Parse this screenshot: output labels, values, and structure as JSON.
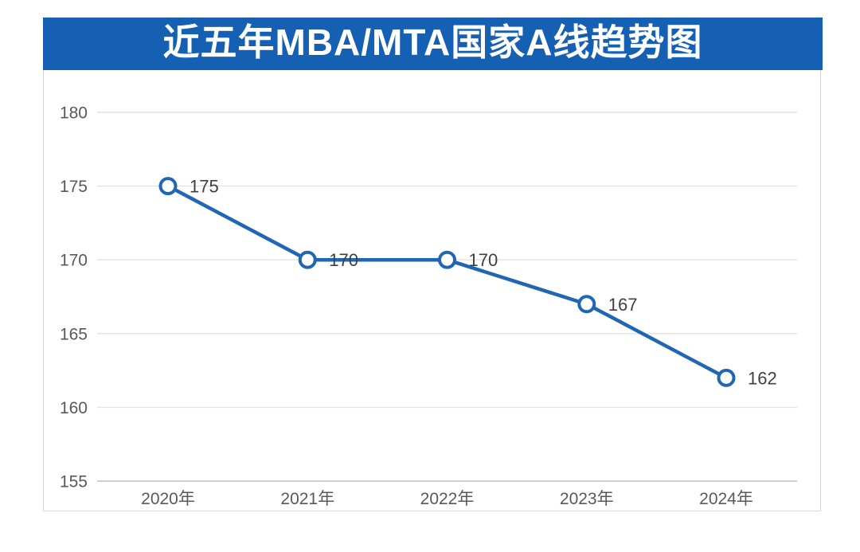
{
  "title": "近五年MBA/MTA国家A线趋势图",
  "colors": {
    "header_bg": "#1560b2",
    "header_text": "#ffffff",
    "line": "#2166b5",
    "marker_fill": "#ffffff",
    "gridline": "#e2e2e2",
    "axis_line": "#c0c0c0",
    "tick_label": "#595959",
    "data_label": "#404040",
    "card_border": "#d9d9d9"
  },
  "chart_data": {
    "type": "line",
    "title": "近五年MBA/MTA国家A线趋势图",
    "categories": [
      "2020年",
      "2021年",
      "2022年",
      "2023年",
      "2024年"
    ],
    "series": [
      {
        "values": [
          175,
          170,
          170,
          167,
          162
        ]
      }
    ],
    "data_labels": [
      "175",
      "170",
      "170",
      "167",
      "162"
    ],
    "y_ticks": [
      155,
      160,
      165,
      170,
      175,
      180
    ],
    "ylim": [
      155,
      180
    ],
    "xlabel": "",
    "ylabel": "",
    "grid": true,
    "legend": false
  }
}
